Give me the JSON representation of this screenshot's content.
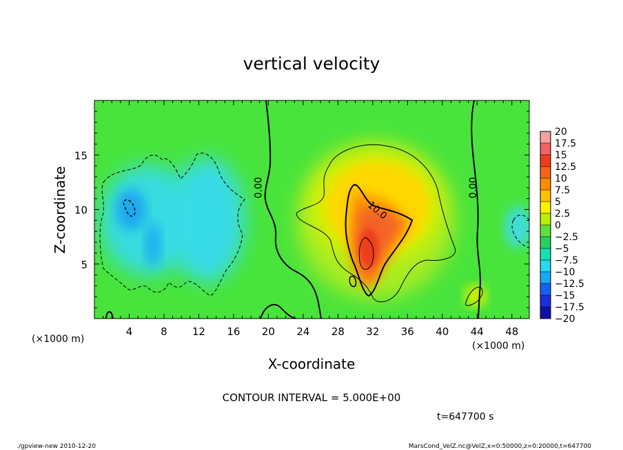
{
  "chart_data": {
    "type": "heatmap",
    "title": "vertical velocity",
    "xlabel": "X-coordinate",
    "ylabel": "Z-coordinate",
    "x_unit": "(×1000 m)",
    "y_unit": "(×1000 m)",
    "xlim": [
      0,
      50
    ],
    "ylim": [
      0,
      20
    ],
    "x_ticks": [
      4,
      8,
      12,
      16,
      20,
      24,
      28,
      32,
      36,
      40,
      44,
      48
    ],
    "y_ticks": [
      5,
      10,
      15
    ],
    "colorbar": {
      "levels": [
        20,
        17.5,
        15,
        12.5,
        10,
        7.5,
        5,
        2.5,
        0,
        -2.5,
        -5,
        -7.5,
        -10,
        -12.5,
        -15,
        -17.5,
        -20
      ],
      "labels": [
        "20",
        "17.5",
        "15",
        "12.5",
        "10",
        "7.5",
        "5",
        "2.5",
        "0",
        "−2.5",
        "−5",
        "−7.5",
        "−10",
        "−12.5",
        "−15",
        "−17.5",
        "−20"
      ],
      "colors": [
        "#f4a0a0",
        "#f06464",
        "#ee3c1c",
        "#f5641c",
        "#ff8c00",
        "#ffc000",
        "#fff000",
        "#b8f000",
        "#60e040",
        "#28d060",
        "#18e0b0",
        "#28d8f0",
        "#18a8f0",
        "#1860f0",
        "#1830e0",
        "#1010a8",
        "#7820b0"
      ]
    },
    "contour_labels": [
      {
        "text": "0.00",
        "x": 19.2,
        "z": 12
      },
      {
        "text": "10.0",
        "x": 32.3,
        "z": 9.7
      },
      {
        "text": "0.00",
        "x": 43.9,
        "z": 12
      }
    ],
    "contour_interval_text": "CONTOUR INTERVAL = 5.000E+00",
    "time_text": "t=647700 s"
  },
  "footer": {
    "left": "./gpview-new  2010-12-20",
    "right": "MarsCond_VelZ.nc@VelZ,x=0:50000,z=0:20000,t=647700"
  },
  "colors": {
    "background": "#40e040"
  }
}
